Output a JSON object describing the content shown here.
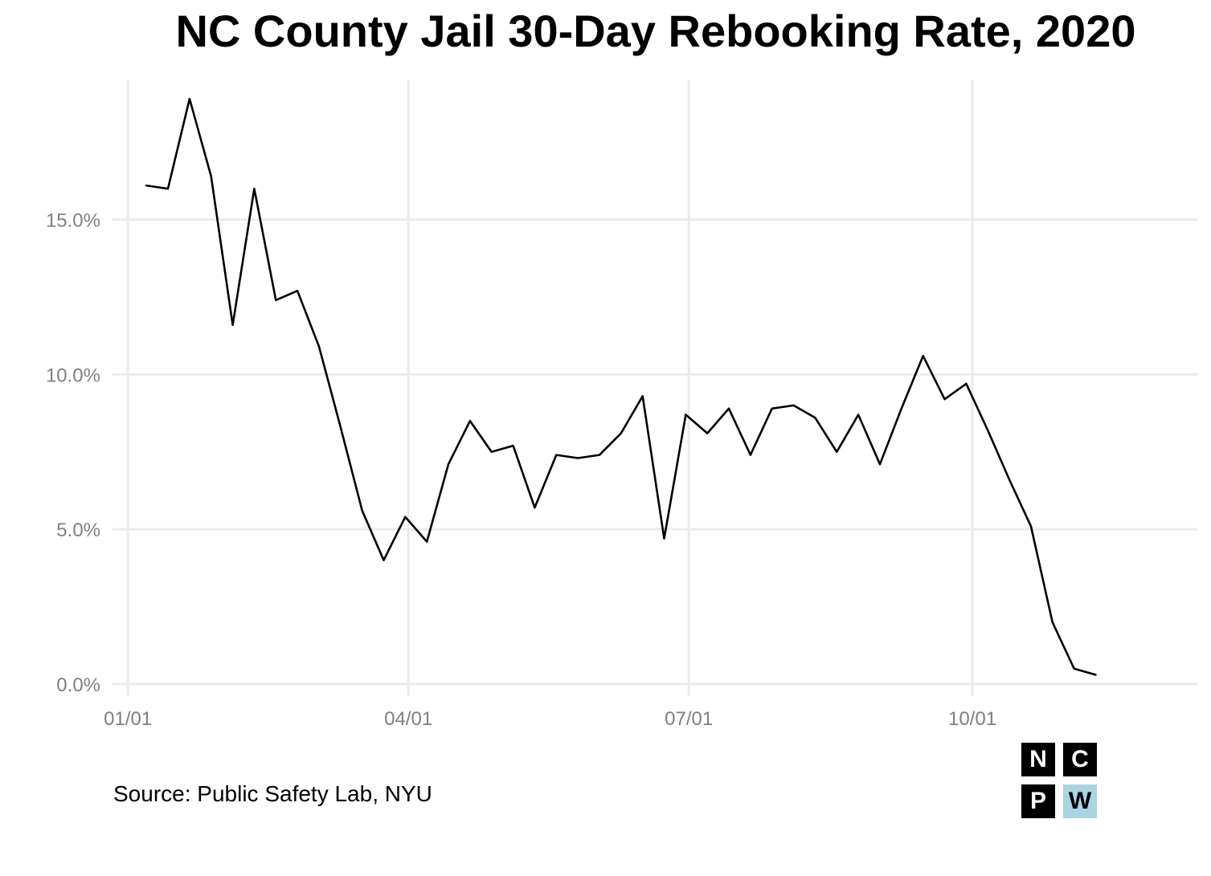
{
  "chart_data": {
    "type": "line",
    "title": "NC County Jail 30-Day Rebooking Rate, 2020",
    "xlabel": "",
    "ylabel": "",
    "x_ticks": [
      {
        "date": "2020-01-01",
        "label": "01/01"
      },
      {
        "date": "2020-04-01",
        "label": "04/01"
      },
      {
        "date": "2020-07-01",
        "label": "07/01"
      },
      {
        "date": "2020-10-01",
        "label": "10/01"
      }
    ],
    "y_ticks": [
      {
        "value": 0,
        "label": "0.0%"
      },
      {
        "value": 5,
        "label": "5.0%"
      },
      {
        "value": 10,
        "label": "10.0%"
      },
      {
        "value": 15,
        "label": "15.0%"
      }
    ],
    "xlim": [
      "2019-12-27",
      "2020-12-13"
    ],
    "ylim": [
      0,
      19.5
    ],
    "grid": true,
    "series": [
      {
        "name": "",
        "color": "#000000",
        "x": [
          "2020-01-07",
          "2020-01-14",
          "2020-01-21",
          "2020-01-28",
          "2020-02-04",
          "2020-02-11",
          "2020-02-18",
          "2020-02-25",
          "2020-03-03",
          "2020-03-10",
          "2020-03-17",
          "2020-03-24",
          "2020-03-31",
          "2020-04-07",
          "2020-04-14",
          "2020-04-21",
          "2020-04-28",
          "2020-05-05",
          "2020-05-12",
          "2020-05-19",
          "2020-05-26",
          "2020-06-02",
          "2020-06-09",
          "2020-06-16",
          "2020-06-23",
          "2020-06-30",
          "2020-07-07",
          "2020-07-14",
          "2020-07-21",
          "2020-07-28",
          "2020-08-04",
          "2020-08-11",
          "2020-08-18",
          "2020-08-25",
          "2020-09-01",
          "2020-09-08",
          "2020-09-15",
          "2020-09-22",
          "2020-09-29",
          "2020-10-06",
          "2020-10-13",
          "2020-10-20",
          "2020-10-27",
          "2020-11-03",
          "2020-11-10"
        ],
        "values": [
          16.1,
          16.0,
          18.9,
          16.4,
          11.6,
          16.0,
          12.4,
          12.7,
          10.9,
          8.3,
          5.6,
          4.0,
          5.4,
          4.6,
          7.1,
          8.5,
          7.5,
          7.7,
          5.7,
          7.4,
          7.3,
          7.4,
          8.1,
          9.3,
          4.7,
          8.7,
          8.1,
          8.9,
          7.4,
          8.9,
          9.0,
          8.6,
          7.5,
          8.7,
          7.1,
          8.9,
          10.6,
          9.2,
          9.7,
          8.2,
          6.6,
          5.1,
          2.0,
          0.5,
          0.3
        ]
      }
    ]
  },
  "source": "Source: Public Safety Lab, NYU",
  "logo": {
    "letters": [
      "N",
      "C",
      "P",
      "W"
    ],
    "colors": {
      "dark": "#000000",
      "light": "#a9d4e1",
      "text_light": "#ffffff",
      "text_dark": "#000000"
    }
  },
  "colors": {
    "grid": "#ebebeb",
    "tick_text": "#7f7f7f",
    "line": "#000000"
  }
}
